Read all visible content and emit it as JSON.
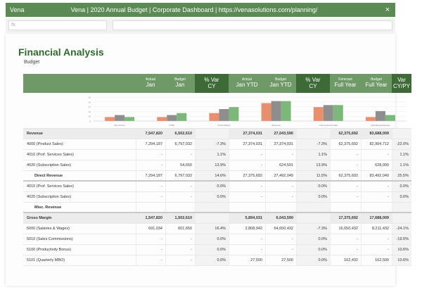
{
  "window": {
    "app": "Vena",
    "title": "Vena | 2020 Annual Budget | Corporate Dashboard | https://venasolutions.com/planning/",
    "close": "×"
  },
  "formula_bar": {
    "placeholder": "fx"
  },
  "page": {
    "title": "Financial Analysis",
    "subtitle": "Budget"
  },
  "columns": [
    {
      "top": "Actual",
      "main": "Jan"
    },
    {
      "top": "Budget",
      "main": "Jan"
    },
    {
      "top": "% Var",
      "main": "CY"
    },
    {
      "top": "Actual",
      "main": "Jan YTD"
    },
    {
      "top": "Budget",
      "main": "Jan YTD"
    },
    {
      "top": "% Var",
      "main": "CY"
    },
    {
      "top": "Forecast",
      "main": "Full Year"
    },
    {
      "top": "Budget",
      "main": "Full Year"
    },
    {
      "top": "Var",
      "main": "CY/PY"
    }
  ],
  "chart_data": {
    "type": "bar",
    "categories": [
      "Net Income",
      "LY/BY",
      "Gross Margin",
      "Revenue",
      "Cost of Goods Sold",
      "Operating Expenses"
    ],
    "series": [
      {
        "name": "",
        "values": [
          2,
          2,
          4,
          9,
          7,
          2
        ]
      },
      {
        "name": "",
        "values": [
          3,
          3,
          6,
          10,
          8,
          5
        ]
      },
      {
        "name": "",
        "values": [
          2,
          4,
          7,
          10,
          8,
          3
        ]
      }
    ],
    "colors": [
      "#e8906e",
      "#8e8e8e",
      "#7cb87a"
    ],
    "ylim": [
      0,
      12
    ],
    "yticks": [
      "0",
      "00",
      "00",
      "00",
      "00",
      "00"
    ]
  },
  "rows": [
    {
      "label": "Revenue",
      "cells": [
        "7,547,820",
        "6,502,610",
        "",
        "27,374,031",
        "27,043,590",
        "",
        "62,375,692",
        "83,688,009",
        ""
      ],
      "style": "gray"
    },
    {
      "label": "4000 (Product Sales)",
      "cells": [
        "7,294,187",
        "6,797,032",
        "-7.3%",
        "27,374,031",
        "27,374,031",
        "-7.3%",
        "62,375,692",
        "82,904,712",
        "-22.0%"
      ]
    },
    {
      "label": "4010 (Prof. Services Sales)",
      "cells": [
        "-",
        "-",
        "1.1%",
        "-",
        "-",
        "1.1%",
        "-",
        "-",
        "1.1%"
      ]
    },
    {
      "label": "4020 (Subscription Sales)",
      "cells": [
        "-",
        "54,650",
        "13.9%",
        "-",
        "624,501",
        "13.9%",
        "-",
        "628,000",
        "1.1%"
      ]
    },
    {
      "label": "Direct Revenue",
      "cells": [
        "7,294,187",
        "6,797,032",
        "14.6%",
        "27,375,692",
        "27,492,049",
        "11.5%",
        "62,375,692",
        "83,492,049",
        "25.5%"
      ],
      "style": "sep"
    },
    {
      "label": "4010 (Prof. Services Sales)",
      "cells": [
        "-",
        "-",
        "0.0%",
        "-",
        "-",
        "0.0%",
        "-",
        "-",
        "0.0%"
      ]
    },
    {
      "label": "4020 (Subscription Sales)",
      "cells": [
        "-",
        "-",
        "0.0%",
        "-",
        "-",
        "0.0%",
        "-",
        "-",
        "0.0%"
      ]
    },
    {
      "label": "Misc. Revenue",
      "cells": [
        "",
        "",
        "",
        "",
        "",
        "",
        "",
        "",
        ""
      ],
      "style": "sep"
    },
    {
      "label": "Gross Margin",
      "cells": [
        "1,547,820",
        "1,502,610",
        "",
        "5,894,031",
        "6,043,590",
        "",
        "17,375,692",
        "17,688,009",
        ""
      ],
      "style": "gray"
    },
    {
      "label": "5000 (Salaries & Wages)",
      "cells": [
        "691,034",
        "601,650",
        "16.4%",
        "2,808,942",
        "54,650,432",
        "-7.3%",
        "16,650,432",
        "8,211,432",
        "-24.1%"
      ]
    },
    {
      "label": "5010 (Sales Commissions)",
      "cells": [
        "-",
        "-",
        "0.0%",
        "-",
        "-",
        "0.0%",
        "-",
        "-",
        "-19.5%"
      ]
    },
    {
      "label": "5100 (Productivity Bonus)",
      "cells": [
        "-",
        "-",
        "0.0%",
        "-",
        "-",
        "0.0%",
        "-",
        "-",
        "10.6%"
      ]
    },
    {
      "label": "5101 (Quarterly MBO)",
      "cells": [
        "-",
        "-",
        "0.0%",
        "27,500",
        "27,500",
        "0.0%",
        "162,432",
        "162,500",
        "10.6%"
      ]
    }
  ]
}
